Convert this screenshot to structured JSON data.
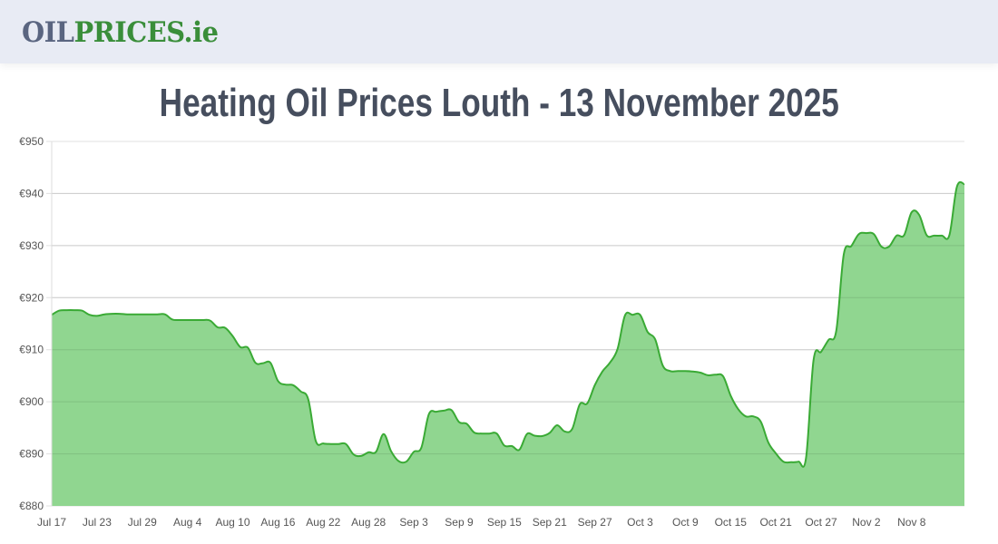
{
  "header": {
    "logo_part1": "OIL",
    "logo_part2": "PRICES.ie",
    "logo_colors": {
      "part1": "#5a6580",
      "part2": "#3a8e3a"
    },
    "background": "#e8ebf4"
  },
  "page": {
    "title": "Heating Oil Prices Louth - 13 November 2025"
  },
  "chart_data": {
    "type": "area",
    "title": "Heating Oil Prices Louth - 13 November 2025",
    "xlabel": "",
    "ylabel": "",
    "currency": "€",
    "ylim": [
      880,
      950
    ],
    "yticks": [
      880,
      890,
      900,
      910,
      920,
      930,
      940,
      950
    ],
    "ytick_labels": [
      "€880",
      "€890",
      "€900",
      "€910",
      "€920",
      "€930",
      "€940",
      "€950"
    ],
    "xtick_labels": [
      "Jul 17",
      "Jul 23",
      "Jul 29",
      "Aug 4",
      "Aug 10",
      "Aug 16",
      "Aug 22",
      "Aug 28",
      "Sep 3",
      "Sep 9",
      "Sep 15",
      "Sep 21",
      "Sep 27",
      "Oct 3",
      "Oct 9",
      "Oct 15",
      "Oct 21",
      "Oct 27",
      "Nov 2",
      "Nov 8"
    ],
    "xtick_day_index": [
      0,
      6,
      12,
      18,
      24,
      30,
      36,
      42,
      48,
      54,
      60,
      66,
      72,
      78,
      84,
      90,
      96,
      102,
      108,
      114
    ],
    "grid": true,
    "legend": false,
    "line_color": "#3aaa35",
    "fill_color": "#90d690",
    "x_start": "Jul 17",
    "x_end": "Nov 13",
    "series": [
      {
        "name": "Heating Oil Price (Louth)",
        "values": [
          916.7,
          917.5,
          917.6,
          917.6,
          917.5,
          916.7,
          916.5,
          916.8,
          916.9,
          916.9,
          916.8,
          916.8,
          916.8,
          916.8,
          916.8,
          916.8,
          915.8,
          915.7,
          915.7,
          915.7,
          915.7,
          915.6,
          914.3,
          914.2,
          912.6,
          910.5,
          910.4,
          907.5,
          907.4,
          907.5,
          904.0,
          903.3,
          903.2,
          902.0,
          900.5,
          892.5,
          892.0,
          891.9,
          891.9,
          891.9,
          889.9,
          889.6,
          890.3,
          890.4,
          893.8,
          890.5,
          888.6,
          888.5,
          890.4,
          891.2,
          897.6,
          898.1,
          898.3,
          898.4,
          896.1,
          895.8,
          894.1,
          893.9,
          893.9,
          893.9,
          891.6,
          891.5,
          890.8,
          893.8,
          893.5,
          893.4,
          894.0,
          895.5,
          894.3,
          894.8,
          899.5,
          899.7,
          903.2,
          905.8,
          907.5,
          910.1,
          916.6,
          916.7,
          916.7,
          913.4,
          912.0,
          907.0,
          905.9,
          905.9,
          905.9,
          905.8,
          905.6,
          905.1,
          905.2,
          904.9,
          901.2,
          898.6,
          897.2,
          897.2,
          896.2,
          892.2,
          890.1,
          888.5,
          888.4,
          888.5,
          889.2,
          908.0,
          909.6,
          911.9,
          913.6,
          928.3,
          929.9,
          932.2,
          932.4,
          932.2,
          929.8,
          929.8,
          931.9,
          932.0,
          936.4,
          935.9,
          932.0,
          931.9,
          931.9,
          932.0,
          941.3,
          941.8
        ]
      }
    ]
  }
}
